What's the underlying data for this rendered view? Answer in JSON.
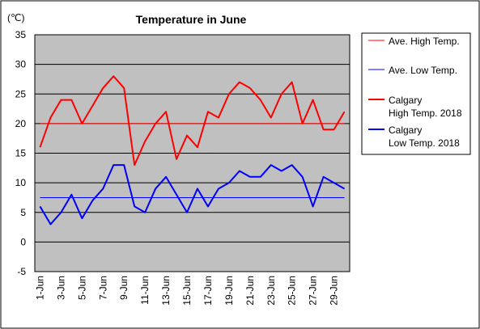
{
  "chart_data": {
    "type": "line",
    "title": "Temperature in June",
    "ylabel": "(℃)",
    "xlabel": "",
    "ylim": [
      -5,
      35
    ],
    "yticks": [
      -5,
      0,
      5,
      10,
      15,
      20,
      25,
      30,
      35
    ],
    "grid": true,
    "legend_position": "right",
    "categories": [
      "1-Jun",
      "2-Jun",
      "3-Jun",
      "4-Jun",
      "5-Jun",
      "6-Jun",
      "7-Jun",
      "8-Jun",
      "9-Jun",
      "10-Jun",
      "11-Jun",
      "12-Jun",
      "13-Jun",
      "14-Jun",
      "15-Jun",
      "16-Jun",
      "17-Jun",
      "18-Jun",
      "19-Jun",
      "20-Jun",
      "21-Jun",
      "22-Jun",
      "23-Jun",
      "24-Jun",
      "25-Jun",
      "26-Jun",
      "27-Jun",
      "28-Jun",
      "29-Jun",
      "30-Jun"
    ],
    "xtick_labels": [
      "1-Jun",
      "3-Jun",
      "5-Jun",
      "7-Jun",
      "9-Jun",
      "11-Jun",
      "13-Jun",
      "15-Jun",
      "17-Jun",
      "19-Jun",
      "21-Jun",
      "23-Jun",
      "25-Jun",
      "27-Jun",
      "29-Jun"
    ],
    "series": [
      {
        "name": "Ave. High Temp.",
        "color": "#ff0000",
        "constant": 20
      },
      {
        "name": "Ave. Low Temp.",
        "color": "#0000ff",
        "constant": 7.5
      },
      {
        "name": "Calgary High Temp. 2018",
        "color": "#ff0000",
        "values": [
          16,
          21,
          24,
          24,
          20,
          23,
          26,
          28,
          26,
          13,
          17,
          20,
          22,
          14,
          18,
          16,
          22,
          21,
          25,
          27,
          26,
          24,
          21,
          25,
          27,
          20,
          24,
          19,
          19,
          22
        ]
      },
      {
        "name": "Calgary Low Temp. 2018",
        "color": "#0000ff",
        "values": [
          6,
          3,
          5,
          8,
          4,
          7,
          9,
          13,
          13,
          6,
          5,
          9,
          11,
          8,
          5,
          9,
          6,
          9,
          10,
          12,
          11,
          11,
          13,
          12,
          13,
          11,
          6,
          11,
          10,
          9
        ]
      }
    ],
    "legend": [
      {
        "lines": [
          "Ave. High Temp."
        ],
        "color": "#ff0000",
        "thin": true
      },
      {
        "lines": [
          "Ave. Low Temp."
        ],
        "color": "#0000ff",
        "thin": true
      },
      {
        "lines": [
          "Calgary",
          "High Temp. 2018"
        ],
        "color": "#ff0000",
        "thin": false
      },
      {
        "lines": [
          "Calgary",
          "Low Temp. 2018"
        ],
        "color": "#0000ff",
        "thin": false
      }
    ]
  }
}
